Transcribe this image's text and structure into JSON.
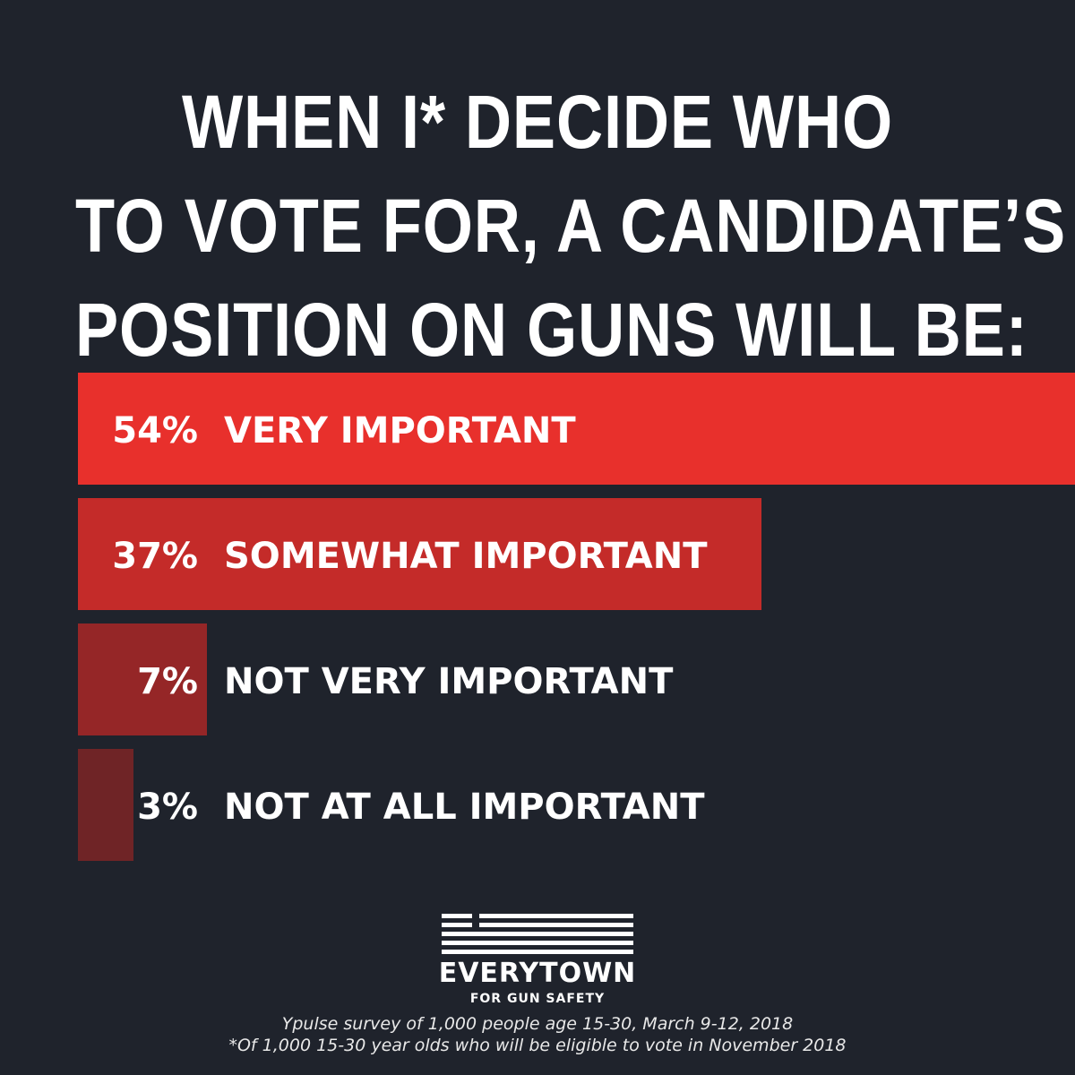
{
  "title_lines": [
    "WHEN I* DECIDE WHO",
    "TO VOTE FOR, A CANDIDATE’S",
    "POSITION ON GUNS WILL BE:"
  ],
  "brand": {
    "name": "EVERYTOWN",
    "tagline": "FOR GUN SAFETY",
    "icon": "flag-stripes-icon"
  },
  "footnotes": {
    "source": "Ypulse survey of 1,000 people age 15-30, March 9-12, 2018",
    "note": "*Of 1,000 15-30 year olds who will be eligible to vote in November 2018"
  },
  "colors": {
    "background": "#1f232c",
    "text": "#ffffff"
  },
  "chart_data": {
    "type": "bar",
    "orientation": "horizontal",
    "categories": [
      "VERY IMPORTANT",
      "SOMEWHAT IMPORTANT",
      "NOT VERY IMPORTANT",
      "NOT AT ALL IMPORTANT"
    ],
    "values": [
      54,
      37,
      7,
      3
    ],
    "value_labels": [
      "54%",
      "37%",
      "7%",
      "3%"
    ],
    "bar_colors": [
      "#e8302c",
      "#c42b29",
      "#952627",
      "#6f2426"
    ],
    "unit": "%",
    "grid": false,
    "legend": "none"
  }
}
